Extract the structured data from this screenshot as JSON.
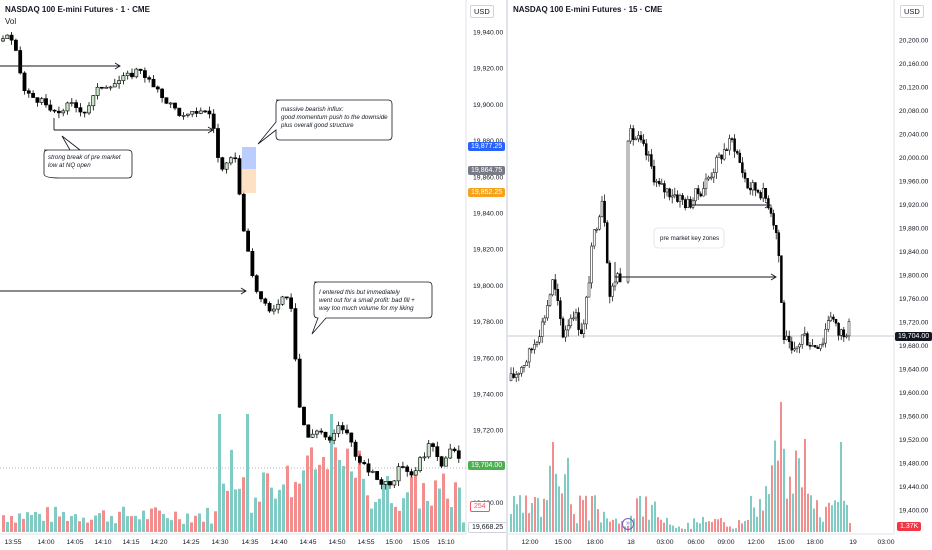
{
  "left": {
    "title": "NASDAQ 100 E-mini Futures · 1 · CME",
    "vol_label": "Vol",
    "currency": "USD",
    "y_ticks": [
      "19,940.00",
      "19,920.00",
      "19,900.00",
      "19,880.00",
      "19,860.00",
      "19,840.00",
      "19,820.00",
      "19,800.00",
      "19,780.00",
      "19,760.00",
      "19,740.00",
      "19,720.00",
      "19,700.00",
      "19,680.00"
    ],
    "x_ticks": [
      "13:55",
      "14:00",
      "14:05",
      "14:10",
      "14:15",
      "14:20",
      "14:25",
      "14:30",
      "14:35",
      "14:40",
      "14:45",
      "14:50",
      "14:55",
      "15:00",
      "15:05",
      "15:10"
    ],
    "price_tags": [
      {
        "text": "19,877.25",
        "color": "#2962ff"
      },
      {
        "text": "19,864.75",
        "color": "#787b86"
      },
      {
        "text": "19,852.25",
        "color": "#f7a21b"
      },
      {
        "text": "19,704.00",
        "color": "#4caf50"
      },
      {
        "text": "254",
        "color": "#f7525f"
      },
      {
        "text": "19,668.25",
        "color": "#ffffff"
      }
    ],
    "annotations": {
      "break": [
        "strong break of pre market",
        "low at NQ open"
      ],
      "influx": [
        "massive bearish influx:",
        "good momentum push to the downside",
        "plus overall good structure"
      ],
      "entered": [
        "I entered this but immediately",
        "went out for a small profit: bad fill +",
        "way too much volume for my liking"
      ]
    }
  },
  "right": {
    "title": "NASDAQ 100 E-mini Futures · 15 · CME",
    "currency": "USD",
    "y_ticks": [
      "20,200.00",
      "20,160.00",
      "20,120.00",
      "20,080.00",
      "20,040.00",
      "20,000.00",
      "19,960.00",
      "19,920.00",
      "19,880.00",
      "19,840.00",
      "19,800.00",
      "19,760.00",
      "19,720.00",
      "19,680.00",
      "19,640.00",
      "19,600.00",
      "19,560.00",
      "19,520.00",
      "19,480.00",
      "19,440.00",
      "19,400.00"
    ],
    "x_ticks": [
      "12:00",
      "15:00",
      "18:00",
      "18",
      "03:00",
      "06:00",
      "09:00",
      "12:00",
      "15:00",
      "18:00",
      "19",
      "03:00"
    ],
    "price_tags": [
      {
        "text": "19,704.00",
        "color": "#131722"
      },
      {
        "text": "1.37K",
        "color": "#f23645"
      }
    ],
    "annotation": "pre market key zones",
    "session_icon": "»"
  },
  "colors": {
    "up": "#ffffff",
    "down": "#000000",
    "vol_up": "#80cbc4",
    "vol_down": "#f28e8e",
    "bear_box": "#aac1ff",
    "bull_box": "#fcd9b3"
  }
}
